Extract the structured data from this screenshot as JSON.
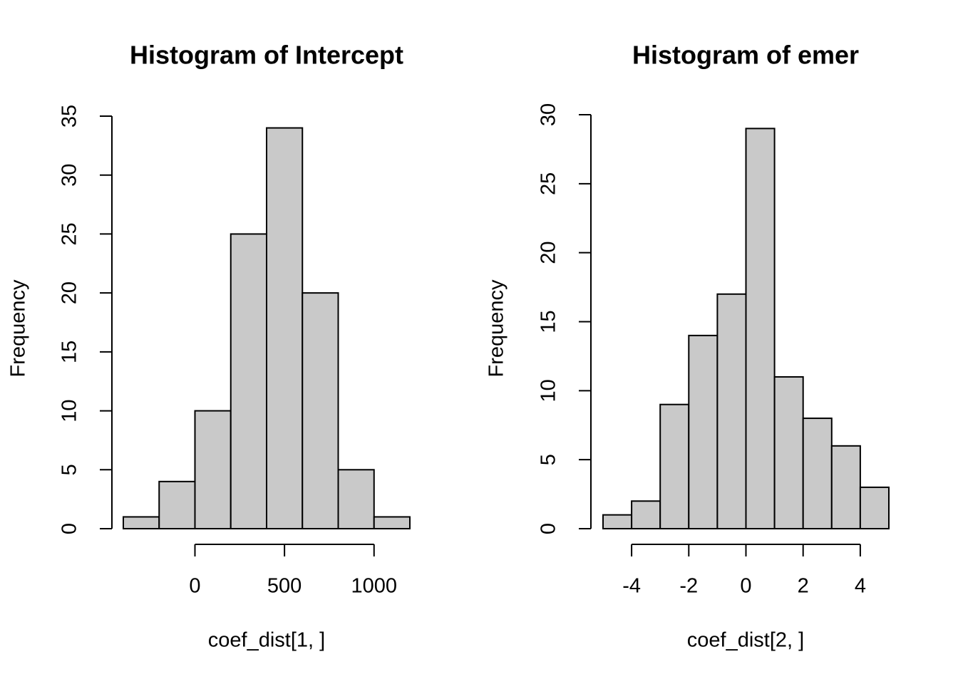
{
  "chart_data": [
    {
      "type": "bar",
      "title": "Histogram of Intercept",
      "xlabel": "coef_dist[1, ]",
      "ylabel": "Frequency",
      "bins": [
        {
          "from": -400,
          "to": -200,
          "count": 1
        },
        {
          "from": -200,
          "to": 0,
          "count": 4
        },
        {
          "from": 0,
          "to": 200,
          "count": 10
        },
        {
          "from": 200,
          "to": 400,
          "count": 25
        },
        {
          "from": 400,
          "to": 600,
          "count": 34
        },
        {
          "from": 600,
          "to": 800,
          "count": 20
        },
        {
          "from": 800,
          "to": 1000,
          "count": 5
        },
        {
          "from": 1000,
          "to": 1200,
          "count": 1
        }
      ],
      "xlim": [
        -400,
        1200
      ],
      "ylim": [
        0,
        35
      ],
      "xticks": [
        0,
        500,
        1000
      ],
      "xtick_labels": [
        "0",
        "500",
        "1000"
      ],
      "yticks": [
        0,
        5,
        10,
        15,
        20,
        25,
        30,
        35
      ],
      "ytick_labels": [
        "0",
        "5",
        "10",
        "15",
        "20",
        "25",
        "30",
        "35"
      ],
      "bar_color": "#c9c9c9",
      "grid": false
    },
    {
      "type": "bar",
      "title": "Histogram of emer",
      "xlabel": "coef_dist[2, ]",
      "ylabel": "Frequency",
      "bins": [
        {
          "from": -5,
          "to": -4,
          "count": 1
        },
        {
          "from": -4,
          "to": -3,
          "count": 2
        },
        {
          "from": -3,
          "to": -2,
          "count": 9
        },
        {
          "from": -2,
          "to": -1,
          "count": 14
        },
        {
          "from": -1,
          "to": 0,
          "count": 17
        },
        {
          "from": 0,
          "to": 1,
          "count": 29
        },
        {
          "from": 1,
          "to": 2,
          "count": 11
        },
        {
          "from": 2,
          "to": 3,
          "count": 8
        },
        {
          "from": 3,
          "to": 4,
          "count": 6
        },
        {
          "from": 4,
          "to": 5,
          "count": 3
        }
      ],
      "xlim": [
        -5,
        5
      ],
      "ylim": [
        0,
        30
      ],
      "xticks": [
        -4,
        -2,
        0,
        2,
        4
      ],
      "xtick_labels": [
        "-4",
        "-2",
        "0",
        "2",
        "4"
      ],
      "yticks": [
        0,
        5,
        10,
        15,
        20,
        25,
        30
      ],
      "ytick_labels": [
        "0",
        "5",
        "10",
        "15",
        "20",
        "25",
        "30"
      ],
      "bar_color": "#c9c9c9",
      "grid": false
    }
  ]
}
